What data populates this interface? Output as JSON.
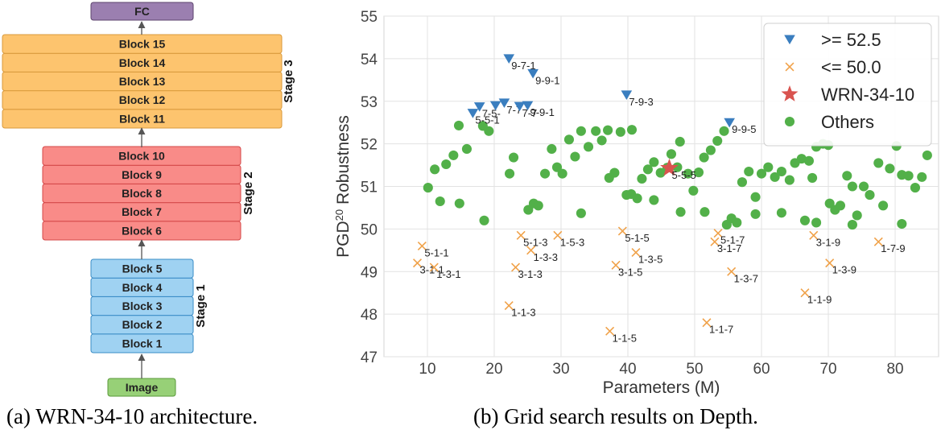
{
  "architecture": {
    "fc_label": "FC",
    "image_label": "Image",
    "stages": [
      {
        "name": "Stage 1",
        "blocks": [
          "Block 1",
          "Block 2",
          "Block 3",
          "Block 4",
          "Block 5"
        ],
        "fill": "#9fd2f2",
        "stroke": "#3a8cc6"
      },
      {
        "name": "Stage 2",
        "blocks": [
          "Block 6",
          "Block 7",
          "Block 8",
          "Block 9",
          "Block 10"
        ],
        "fill": "#f98b88",
        "stroke": "#d44848"
      },
      {
        "name": "Stage 3",
        "blocks": [
          "Block 11",
          "Block 12",
          "Block 13",
          "Block 14",
          "Block 15"
        ],
        "fill": "#fdc46e",
        "stroke": "#d99a3c"
      }
    ],
    "colors": {
      "fc_fill": "#9b7fb0",
      "fc_stroke": "#5e466e",
      "image_fill": "#97d077",
      "image_stroke": "#5a9a3a",
      "arrow": "#555555"
    }
  },
  "captions": {
    "a": "(a) WRN-34-10 architecture.",
    "b": "(b) Grid search results on Depth."
  },
  "chart_data": {
    "type": "scatter",
    "xlabel": "Parameters (M)",
    "ylabel": "PGD",
    "ylabel_sup": "20",
    "ylabel_rest": " Robustness",
    "xlim": [
      3.5,
      86.5
    ],
    "ylim": [
      47,
      55
    ],
    "xticks": [
      10,
      20,
      30,
      40,
      50,
      60,
      70,
      80
    ],
    "yticks": [
      47,
      48,
      49,
      50,
      51,
      52,
      53,
      54,
      55
    ],
    "grid": true,
    "legend_position": "top-right",
    "series": [
      {
        "name": ">= 52.5",
        "marker": "triangle-down",
        "color": "#3a7ebf",
        "points": [
          {
            "x": 22.2,
            "y": 54.0,
            "label": "9-7-1"
          },
          {
            "x": 25.8,
            "y": 53.65,
            "label": "9-9-1"
          },
          {
            "x": 39.8,
            "y": 53.15,
            "label": "7-9-3"
          },
          {
            "x": 55.2,
            "y": 52.5,
            "label": "9-9-5"
          },
          {
            "x": 16.8,
            "y": 52.72,
            "label": "5-5-1"
          },
          {
            "x": 17.8,
            "y": 52.87,
            "label": "7-5-"
          },
          {
            "x": 20.2,
            "y": 52.9,
            "label": ""
          },
          {
            "x": 21.5,
            "y": 52.96,
            "label": "7-7"
          },
          {
            "x": 23.8,
            "y": 52.88,
            "label": "7-7"
          },
          {
            "x": 25.0,
            "y": 52.9,
            "label": "9-9-1"
          }
        ]
      },
      {
        "name": "<= 50.0",
        "marker": "x",
        "color": "#f0a24a",
        "points": [
          {
            "x": 9.2,
            "y": 49.6,
            "label": "5-1-1"
          },
          {
            "x": 8.5,
            "y": 49.2,
            "label": "3-1-1"
          },
          {
            "x": 11.0,
            "y": 49.1,
            "label": "1-3-1"
          },
          {
            "x": 24.0,
            "y": 49.85,
            "label": "5-1-3"
          },
          {
            "x": 29.5,
            "y": 49.85,
            "label": "1-5-3"
          },
          {
            "x": 25.5,
            "y": 49.5,
            "label": "1-3-3"
          },
          {
            "x": 23.2,
            "y": 49.1,
            "label": "3-1-3"
          },
          {
            "x": 22.2,
            "y": 48.2,
            "label": "1-1-3"
          },
          {
            "x": 39.2,
            "y": 49.95,
            "label": "5-1-5"
          },
          {
            "x": 41.2,
            "y": 49.45,
            "label": "1-3-5"
          },
          {
            "x": 38.2,
            "y": 49.15,
            "label": "3-1-5"
          },
          {
            "x": 37.3,
            "y": 47.6,
            "label": "1-1-5"
          },
          {
            "x": 53.5,
            "y": 49.9,
            "label": "5-1-7"
          },
          {
            "x": 53.0,
            "y": 49.7,
            "label": "3-1-7"
          },
          {
            "x": 55.5,
            "y": 49.0,
            "label": "1-3-7"
          },
          {
            "x": 51.8,
            "y": 47.8,
            "label": "1-1-7"
          },
          {
            "x": 67.8,
            "y": 49.85,
            "label": "3-1-9"
          },
          {
            "x": 70.2,
            "y": 49.2,
            "label": "1-3-9"
          },
          {
            "x": 66.5,
            "y": 48.5,
            "label": "1-1-9"
          },
          {
            "x": 77.5,
            "y": 49.7,
            "label": "1-7-9"
          }
        ]
      },
      {
        "name": "WRN-34-10",
        "marker": "star",
        "color": "#d9534f",
        "points": [
          {
            "x": 46.2,
            "y": 51.43,
            "label": "5-5-5"
          }
        ]
      },
      {
        "name": "Others",
        "marker": "circle",
        "color": "#52b049",
        "points": [
          {
            "x": 10.1,
            "y": 50.97
          },
          {
            "x": 11.1,
            "y": 51.4
          },
          {
            "x": 11.9,
            "y": 50.65
          },
          {
            "x": 12.8,
            "y": 51.52
          },
          {
            "x": 13.9,
            "y": 51.73
          },
          {
            "x": 14.8,
            "y": 50.6
          },
          {
            "x": 14.7,
            "y": 52.43
          },
          {
            "x": 15.9,
            "y": 51.88
          },
          {
            "x": 18.3,
            "y": 52.42
          },
          {
            "x": 18.5,
            "y": 50.2
          },
          {
            "x": 19.2,
            "y": 52.3
          },
          {
            "x": 22.3,
            "y": 51.3
          },
          {
            "x": 22.9,
            "y": 51.68
          },
          {
            "x": 25.1,
            "y": 50.45
          },
          {
            "x": 25.9,
            "y": 50.6
          },
          {
            "x": 26.6,
            "y": 50.55
          },
          {
            "x": 27.6,
            "y": 51.3
          },
          {
            "x": 28.6,
            "y": 51.88
          },
          {
            "x": 29.4,
            "y": 51.45
          },
          {
            "x": 30.2,
            "y": 51.3
          },
          {
            "x": 31.2,
            "y": 52.1
          },
          {
            "x": 32.1,
            "y": 51.7
          },
          {
            "x": 33.0,
            "y": 52.3
          },
          {
            "x": 33.0,
            "y": 50.37
          },
          {
            "x": 34.1,
            "y": 51.93
          },
          {
            "x": 35.2,
            "y": 52.3
          },
          {
            "x": 36.1,
            "y": 52.08
          },
          {
            "x": 37.0,
            "y": 52.32
          },
          {
            "x": 37.2,
            "y": 51.2
          },
          {
            "x": 38.0,
            "y": 51.32
          },
          {
            "x": 38.9,
            "y": 52.28
          },
          {
            "x": 39.8,
            "y": 50.8
          },
          {
            "x": 40.5,
            "y": 50.82
          },
          {
            "x": 40.6,
            "y": 52.33
          },
          {
            "x": 41.4,
            "y": 50.72
          },
          {
            "x": 42.1,
            "y": 51.18
          },
          {
            "x": 43.0,
            "y": 51.4
          },
          {
            "x": 43.9,
            "y": 51.57
          },
          {
            "x": 43.9,
            "y": 50.68
          },
          {
            "x": 44.9,
            "y": 51.32
          },
          {
            "x": 45.9,
            "y": 51.44
          },
          {
            "x": 46.5,
            "y": 51.76
          },
          {
            "x": 47.4,
            "y": 51.45
          },
          {
            "x": 47.8,
            "y": 52.05
          },
          {
            "x": 47.9,
            "y": 50.4
          },
          {
            "x": 49.0,
            "y": 51.3
          },
          {
            "x": 49.8,
            "y": 50.9
          },
          {
            "x": 50.6,
            "y": 51.33
          },
          {
            "x": 51.4,
            "y": 51.68
          },
          {
            "x": 51.5,
            "y": 50.4
          },
          {
            "x": 52.4,
            "y": 51.85
          },
          {
            "x": 53.4,
            "y": 52.07
          },
          {
            "x": 54.4,
            "y": 52.3
          },
          {
            "x": 54.8,
            "y": 50.1
          },
          {
            "x": 55.5,
            "y": 50.25
          },
          {
            "x": 56.3,
            "y": 50.15
          },
          {
            "x": 57.1,
            "y": 51.1
          },
          {
            "x": 58.1,
            "y": 51.35
          },
          {
            "x": 59.1,
            "y": 50.75
          },
          {
            "x": 59.1,
            "y": 50.35
          },
          {
            "x": 60.0,
            "y": 51.3
          },
          {
            "x": 61.0,
            "y": 51.45
          },
          {
            "x": 62.0,
            "y": 51.22
          },
          {
            "x": 63.0,
            "y": 51.35
          },
          {
            "x": 63.0,
            "y": 50.38
          },
          {
            "x": 64.2,
            "y": 51.15
          },
          {
            "x": 65.0,
            "y": 51.55
          },
          {
            "x": 66.0,
            "y": 51.65
          },
          {
            "x": 66.5,
            "y": 50.2
          },
          {
            "x": 67.1,
            "y": 51.6
          },
          {
            "x": 67.6,
            "y": 51.2
          },
          {
            "x": 68.2,
            "y": 51.93
          },
          {
            "x": 68.2,
            "y": 50.15
          },
          {
            "x": 69.2,
            "y": 52.0
          },
          {
            "x": 70.0,
            "y": 51.97
          },
          {
            "x": 70.2,
            "y": 50.6
          },
          {
            "x": 71.0,
            "y": 50.45
          },
          {
            "x": 71.8,
            "y": 50.55
          },
          {
            "x": 72.8,
            "y": 51.25
          },
          {
            "x": 73.6,
            "y": 51.0
          },
          {
            "x": 73.6,
            "y": 50.1
          },
          {
            "x": 74.3,
            "y": 50.32
          },
          {
            "x": 75.3,
            "y": 51.0
          },
          {
            "x": 76.2,
            "y": 50.8
          },
          {
            "x": 77.5,
            "y": 51.55
          },
          {
            "x": 78.2,
            "y": 50.55
          },
          {
            "x": 79.2,
            "y": 51.42
          },
          {
            "x": 80.2,
            "y": 51.95
          },
          {
            "x": 81.0,
            "y": 51.27
          },
          {
            "x": 81.0,
            "y": 50.12
          },
          {
            "x": 82.0,
            "y": 51.25
          },
          {
            "x": 83.0,
            "y": 50.97
          },
          {
            "x": 84.0,
            "y": 51.22
          },
          {
            "x": 84.8,
            "y": 51.73
          }
        ]
      }
    ]
  }
}
